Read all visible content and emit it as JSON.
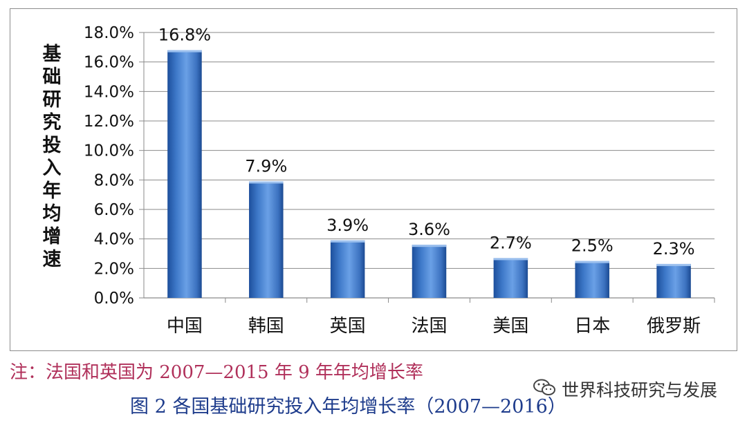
{
  "chart_data": {
    "type": "bar",
    "categories": [
      "中国",
      "韩国",
      "英国",
      "法国",
      "美国",
      "日本",
      "俄罗斯"
    ],
    "values": [
      16.8,
      7.9,
      3.9,
      3.6,
      2.7,
      2.5,
      2.3
    ],
    "data_labels": [
      "16.8%",
      "7.9%",
      "3.9%",
      "3.6%",
      "2.7%",
      "2.5%",
      "2.3%"
    ],
    "ylabel": "基础研究投入年均增速",
    "yticks": [
      "0.0%",
      "2.0%",
      "4.0%",
      "6.0%",
      "8.0%",
      "10.0%",
      "12.0%",
      "14.0%",
      "16.0%",
      "18.0%"
    ],
    "ylim": [
      0,
      18
    ],
    "grid": true,
    "legend": "none",
    "bar_color": "#4a86d4",
    "bar_dark": "#1d4f9c"
  },
  "note": "注：法国和英国为 2007—2015 年 9 年年均增长率",
  "caption": "图 2  各国基础研究投入年均增长率（2007—2016）",
  "watermark": {
    "icon": "wechat-icon",
    "text": "世界科技研究与发展"
  }
}
